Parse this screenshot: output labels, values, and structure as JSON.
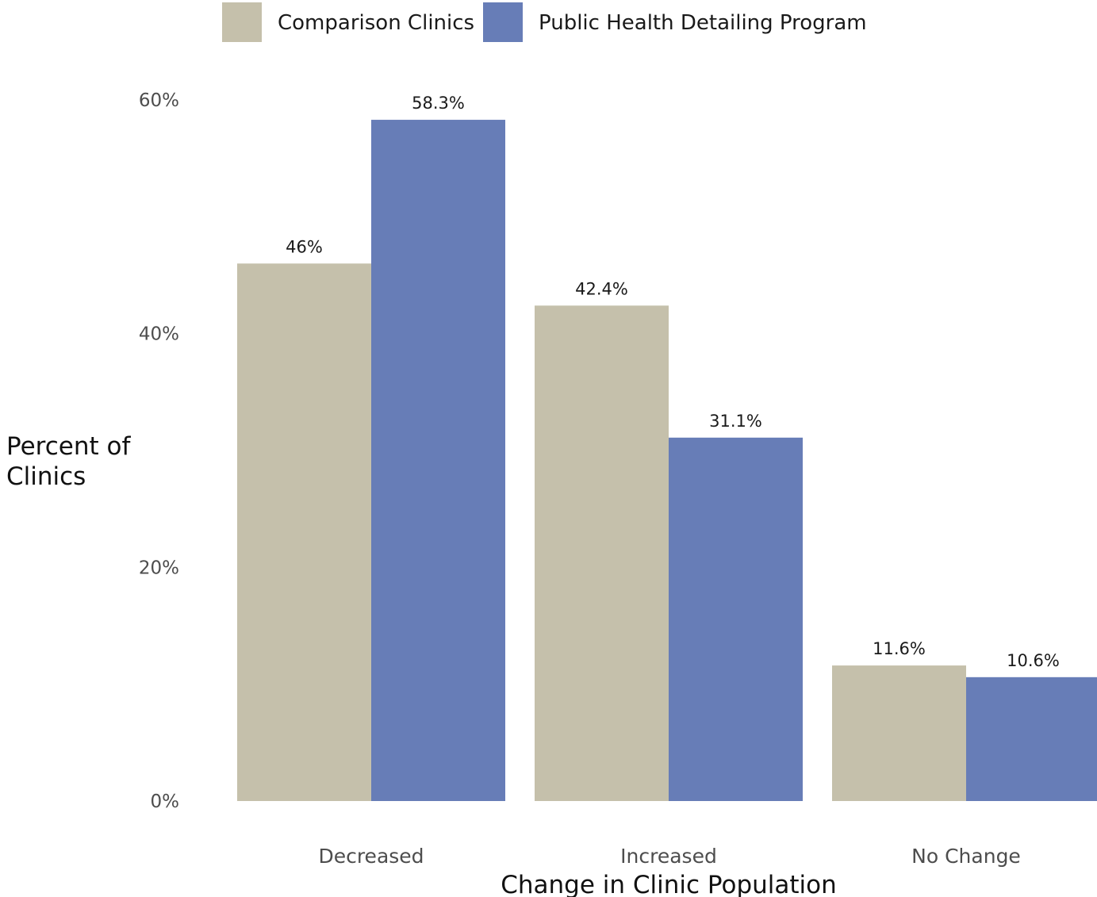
{
  "chart_data": {
    "type": "bar",
    "title": "",
    "xlabel": "Change in Clinic Population",
    "ylabel_lines": [
      "Percent of",
      "Clinics"
    ],
    "categories": [
      "Decreased",
      "Increased",
      "No Change"
    ],
    "series": [
      {
        "name": "Comparison Clinics",
        "color": "#c5c0ab",
        "values": [
          46,
          42.4,
          11.6
        ],
        "labels": [
          "46%",
          "42.4%",
          "11.6%"
        ]
      },
      {
        "name": "Public Health Detailing Program",
        "color": "#677db7",
        "values": [
          58.3,
          31.1,
          10.6
        ],
        "labels": [
          "58.3%",
          "31.1%",
          "10.6%"
        ]
      }
    ],
    "ylim": [
      0,
      60
    ],
    "yticks": [
      0,
      20,
      40,
      60
    ],
    "ytick_labels": [
      "0%",
      "20%",
      "40%",
      "60%"
    ],
    "grid": false,
    "legend_position": "top"
  }
}
